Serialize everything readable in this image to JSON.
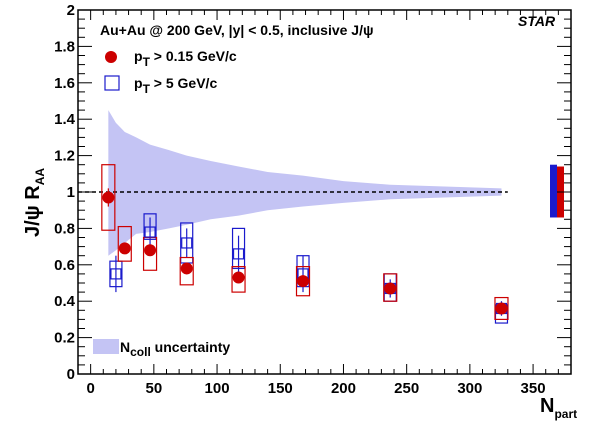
{
  "chart_data": {
    "type": "scatter",
    "title": "Au+Au @ 200 GeV, |y| < 0.5, inclusive J/ψ",
    "experiment_label": "STAR",
    "xlabel": {
      "main": "N",
      "sub": "part"
    },
    "ylabel": {
      "main": "J/ψ R",
      "sub": "AA"
    },
    "xlim": [
      -10,
      380
    ],
    "ylim": [
      0,
      2
    ],
    "x_ticks": [
      0,
      50,
      100,
      150,
      200,
      250,
      300,
      350
    ],
    "y_ticks": [
      0,
      0.2,
      0.4,
      0.6,
      0.8,
      1,
      1.2,
      1.4,
      1.6,
      1.8,
      2
    ],
    "y_tick_labels": [
      "0",
      "0.2",
      "0.4",
      "0.6",
      "0.8",
      "1",
      "1.2",
      "1.4",
      "1.6",
      "1.8",
      "2"
    ],
    "reference_line": 1,
    "colors": {
      "low_pt": "#cc0000",
      "high_pt": "#1a1acc",
      "band": "#c4c4f4"
    },
    "series": [
      {
        "name": "p_T > 0.15 GeV/c",
        "legend_main": "p",
        "legend_sub": "T",
        "legend_rest": " > 0.15 GeV/c",
        "marker": "filled-circle",
        "points": [
          {
            "x": 14,
            "y": 0.97,
            "stat": 0.05,
            "sys_lo": 0.79,
            "sys_hi": 1.15
          },
          {
            "x": 27,
            "y": 0.69,
            "stat": 0.03,
            "sys_lo": 0.62,
            "sys_hi": 0.81
          },
          {
            "x": 47,
            "y": 0.68,
            "stat": 0.02,
            "sys_lo": 0.57,
            "sys_hi": 0.75
          },
          {
            "x": 76,
            "y": 0.58,
            "stat": 0.02,
            "sys_lo": 0.49,
            "sys_hi": 0.64
          },
          {
            "x": 117,
            "y": 0.53,
            "stat": 0.02,
            "sys_lo": 0.45,
            "sys_hi": 0.59
          },
          {
            "x": 168,
            "y": 0.51,
            "stat": 0.02,
            "sys_lo": 0.43,
            "sys_hi": 0.59
          },
          {
            "x": 237,
            "y": 0.47,
            "stat": 0.02,
            "sys_lo": 0.4,
            "sys_hi": 0.55
          },
          {
            "x": 325,
            "y": 0.36,
            "stat": 0.02,
            "sys_lo": 0.3,
            "sys_hi": 0.42
          }
        ]
      },
      {
        "name": "p_T > 5 GeV/c",
        "legend_main": "p",
        "legend_sub": "T",
        "legend_rest": " > 5 GeV/c",
        "marker": "open-square",
        "points": [
          {
            "x": 20,
            "y": 0.55,
            "stat": 0.1,
            "sys_lo": 0.48,
            "sys_hi": 0.62
          },
          {
            "x": 47,
            "y": 0.78,
            "stat": 0.08,
            "sys_lo": 0.74,
            "sys_hi": 0.88
          },
          {
            "x": 76,
            "y": 0.72,
            "stat": 0.08,
            "sys_lo": 0.61,
            "sys_hi": 0.83
          },
          {
            "x": 117,
            "y": 0.66,
            "stat": 0.1,
            "sys_lo": 0.58,
            "sys_hi": 0.8
          },
          {
            "x": 168,
            "y": 0.55,
            "stat": 0.1,
            "sys_lo": 0.48,
            "sys_hi": 0.65
          },
          {
            "x": 237,
            "y": 0.47,
            "stat": 0.05,
            "sys_lo": 0.4,
            "sys_hi": 0.55
          },
          {
            "x": 325,
            "y": 0.36,
            "stat": 0.04,
            "sys_lo": 0.28,
            "sys_hi": 0.38
          }
        ]
      }
    ],
    "ncoll_band": {
      "label_main": "N",
      "label_sub": "coll",
      "label_rest": " uncertainty",
      "x": [
        14,
        20,
        27,
        36,
        47,
        62,
        76,
        95,
        117,
        140,
        168,
        200,
        237,
        280,
        325
      ],
      "upper": [
        1.45,
        1.38,
        1.33,
        1.3,
        1.26,
        1.23,
        1.2,
        1.17,
        1.14,
        1.11,
        1.09,
        1.06,
        1.04,
        1.03,
        1.02
      ],
      "lower": [
        0.65,
        0.68,
        0.72,
        0.77,
        0.78,
        0.8,
        0.82,
        0.85,
        0.87,
        0.9,
        0.92,
        0.94,
        0.96,
        0.97,
        0.98
      ]
    },
    "global_uncertainty": [
      {
        "series": "p_T > 5 GeV/c",
        "lo": 0.86,
        "hi": 1.15
      },
      {
        "series": "p_T > 0.15 GeV/c",
        "lo": 0.86,
        "hi": 1.14
      }
    ]
  }
}
